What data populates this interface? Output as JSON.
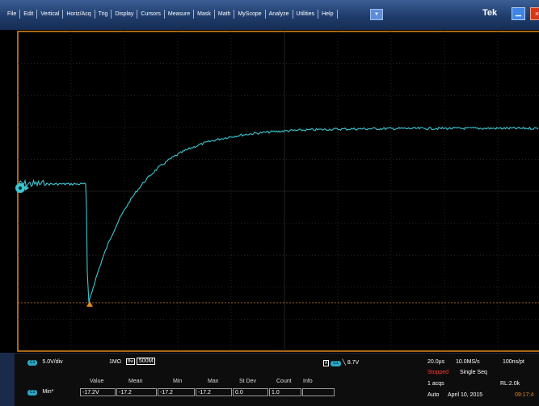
{
  "menus": [
    "File",
    "Edit",
    "Vertical",
    "Horiz/Acq",
    "Trig",
    "Display",
    "Cursors",
    "Measure",
    "Mask",
    "Math",
    "MyScope",
    "Analyze",
    "Utilities",
    "Help"
  ],
  "brand": "Tek",
  "colors": {
    "trace": "#3ec6d0",
    "frame": "#e08a1e",
    "badge": "#2aa7c7",
    "stopped": "#ff3b30"
  },
  "channel": {
    "badge": "C1",
    "scale": "5.0V/div",
    "coupling": "1MΩ",
    "bandwidth": "500M"
  },
  "trigger": {
    "badge": "C1",
    "level": "8.7V"
  },
  "measure": {
    "headers": [
      "Value",
      "Mean",
      "Min",
      "Max",
      "St Dev",
      "Count",
      "Info"
    ],
    "rows": [
      {
        "badge": "C1",
        "label": "Min*",
        "value": "-17.2V",
        "mean": "-17.2",
        "min": "-17.2",
        "max": "-17.2",
        "stdev": "0.0",
        "count": "1.0",
        "info": ""
      }
    ]
  },
  "acq": {
    "timebase": "20.0µs",
    "rate": "10.0MS/s",
    "res": "100ns/pt",
    "status": "Stopped",
    "mode": "Single Seq",
    "acqs": "1 acqs",
    "rl": "RL:2.0k",
    "trig_mode": "Auto",
    "date": "April 10, 2015",
    "time": "09:17:4"
  }
}
